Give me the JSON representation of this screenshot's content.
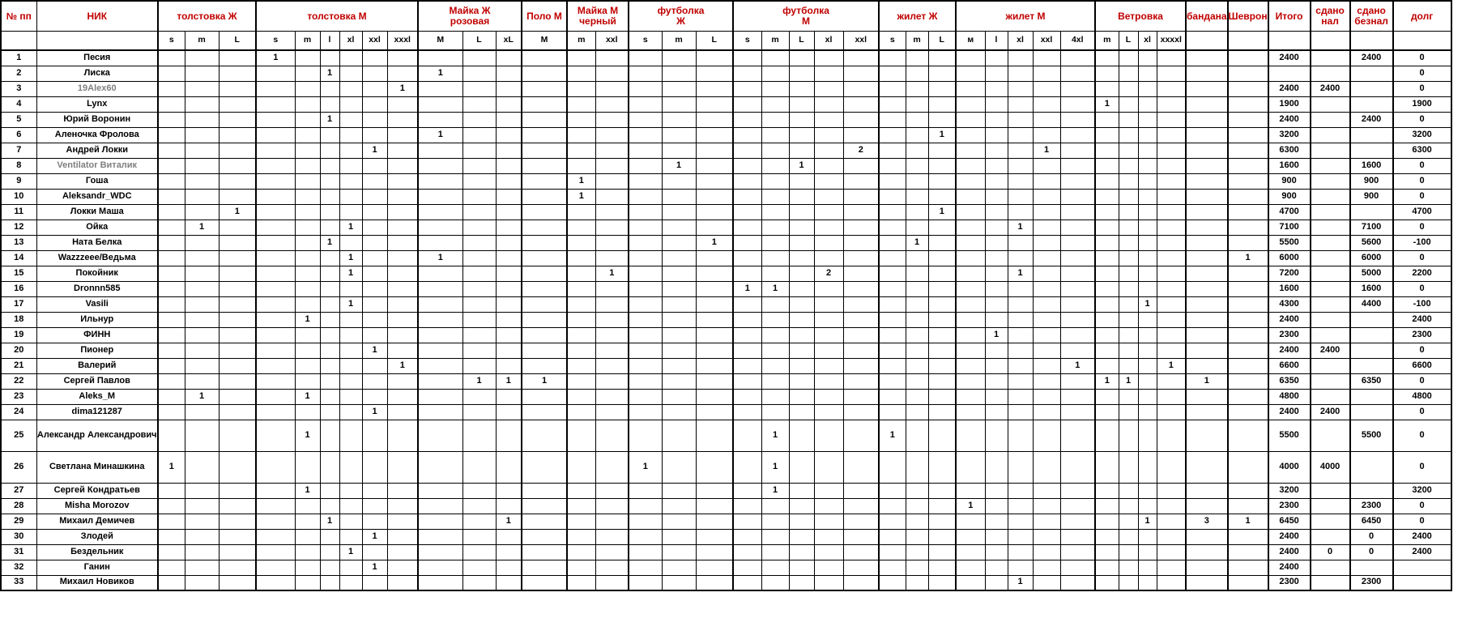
{
  "colors": {
    "header_text": "#C00000",
    "grid_line": "#000000",
    "muted_name": "#7f7f7f"
  },
  "header": {
    "row_label": "№ пп",
    "nick_label": "НИК",
    "groups": [
      {
        "label": "толстовка Ж",
        "sizes": [
          "s",
          "m",
          "L"
        ]
      },
      {
        "label": "толстовка М",
        "sizes": [
          "s",
          "m",
          "l",
          "xl",
          "xxl",
          "xxxl"
        ]
      },
      {
        "label": "Майка Ж\nрозовая",
        "sizes": [
          "M",
          "L",
          "xL"
        ]
      },
      {
        "label": "Поло М",
        "sizes": [
          "M"
        ]
      },
      {
        "label": "Майка М\nчерный",
        "sizes": [
          "m",
          "xxl"
        ]
      },
      {
        "label": "футболка\nЖ",
        "sizes": [
          "s",
          "m",
          "L"
        ]
      },
      {
        "label": "футболка\nМ",
        "sizes": [
          "s",
          "m",
          "L",
          "xl",
          "xxl"
        ]
      },
      {
        "label": "жилет Ж",
        "sizes": [
          "s",
          "m",
          "L"
        ]
      },
      {
        "label": "жилет М",
        "sizes": [
          "м",
          "l",
          "xl",
          "xxl",
          "4xl"
        ]
      },
      {
        "label": "Ветровка",
        "sizes": [
          "m",
          "L",
          "xl",
          "xxxxl"
        ]
      },
      {
        "label": "бандана",
        "sizes": null
      },
      {
        "label": "Шеврон",
        "sizes": null
      },
      {
        "label": "Итого",
        "sizes": null
      },
      {
        "label": "сдано\nнал",
        "sizes": null
      },
      {
        "label": "сдано\nбезнал",
        "sizes": null
      },
      {
        "label": "долг",
        "sizes": null
      }
    ]
  },
  "rows": [
    {
      "n": "1",
      "nick": "Песия",
      "muted": false,
      "tall": false,
      "cells": {
        "3": "1"
      },
      "totals": [
        "2400",
        "",
        "2400",
        "0"
      ]
    },
    {
      "n": "2",
      "nick": "Лиска",
      "muted": false,
      "tall": false,
      "cells": {
        "5": "1",
        "9": "1"
      },
      "totals": [
        "",
        "",
        "",
        "0"
      ]
    },
    {
      "n": "3",
      "nick": "19Alex60",
      "muted": true,
      "tall": false,
      "cells": {
        "8": "1"
      },
      "totals": [
        "2400",
        "2400",
        "",
        "0"
      ]
    },
    {
      "n": "4",
      "nick": "Lynx",
      "muted": false,
      "tall": false,
      "cells": {
        "31": "1"
      },
      "totals": [
        "1900",
        "",
        "",
        "1900"
      ]
    },
    {
      "n": "5",
      "nick": "Юрий Воронин",
      "muted": false,
      "tall": false,
      "cells": {
        "5": "1"
      },
      "totals": [
        "2400",
        "",
        "2400",
        "0"
      ]
    },
    {
      "n": "6",
      "nick": "Аленочка Фролова",
      "muted": false,
      "tall": false,
      "cells": {
        "9": "1",
        "25": "1"
      },
      "totals": [
        "3200",
        "",
        "",
        "3200"
      ]
    },
    {
      "n": "7",
      "nick": "Андрей Локки",
      "muted": false,
      "tall": false,
      "cells": {
        "7": "1",
        "22": "2",
        "29": "1"
      },
      "totals": [
        "6300",
        "",
        "",
        "6300"
      ]
    },
    {
      "n": "8",
      "nick": "Ventilator Виталик",
      "muted": true,
      "tall": false,
      "cells": {
        "16": "1",
        "20": "1"
      },
      "totals": [
        "1600",
        "",
        "1600",
        "0"
      ]
    },
    {
      "n": "9",
      "nick": "Гоша",
      "muted": false,
      "tall": false,
      "cells": {
        "13": "1"
      },
      "totals": [
        "900",
        "",
        "900",
        "0"
      ]
    },
    {
      "n": "10",
      "nick": "Aleksandr_WDC",
      "muted": false,
      "tall": false,
      "cells": {
        "13": "1"
      },
      "totals": [
        "900",
        "",
        "900",
        "0"
      ]
    },
    {
      "n": "11",
      "nick": "Локки Маша",
      "muted": false,
      "tall": false,
      "cells": {
        "2": "1",
        "25": "1"
      },
      "totals": [
        "4700",
        "",
        "",
        "4700"
      ]
    },
    {
      "n": "12",
      "nick": "Ойка",
      "muted": false,
      "tall": false,
      "cells": {
        "1": "1",
        "6": "1",
        "28": "1"
      },
      "totals": [
        "7100",
        "",
        "7100",
        "0"
      ]
    },
    {
      "n": "13",
      "nick": "Ната Белка",
      "muted": false,
      "tall": false,
      "cells": {
        "5": "1",
        "17": "1",
        "24": "1"
      },
      "totals": [
        "5500",
        "",
        "5600",
        "-100"
      ]
    },
    {
      "n": "14",
      "nick": "Wazzzeee/Ведьма",
      "muted": false,
      "tall": false,
      "cells": {
        "6": "1",
        "9": "1",
        "36": "1"
      },
      "totals": [
        "6000",
        "",
        "6000",
        "0"
      ]
    },
    {
      "n": "15",
      "nick": "Покойник",
      "muted": false,
      "tall": false,
      "cells": {
        "6": "1",
        "14": "1",
        "21": "2",
        "28": "1"
      },
      "totals": [
        "7200",
        "",
        "5000",
        "2200"
      ]
    },
    {
      "n": "16",
      "nick": "Dronnn585",
      "muted": false,
      "tall": false,
      "cells": {
        "18": "1",
        "19": "1"
      },
      "totals": [
        "1600",
        "",
        "1600",
        "0"
      ]
    },
    {
      "n": "17",
      "nick": "Vasili",
      "muted": false,
      "tall": false,
      "cells": {
        "6": "1",
        "33": "1"
      },
      "totals": [
        "4300",
        "",
        "4400",
        "-100"
      ]
    },
    {
      "n": "18",
      "nick": "Ильнур",
      "muted": false,
      "tall": false,
      "cells": {
        "4": "1"
      },
      "totals": [
        "2400",
        "",
        "",
        "2400"
      ]
    },
    {
      "n": "19",
      "nick": "ФИНН",
      "muted": false,
      "tall": false,
      "cells": {
        "27": "1"
      },
      "totals": [
        "2300",
        "",
        "",
        "2300"
      ]
    },
    {
      "n": "20",
      "nick": "Пионер",
      "muted": false,
      "tall": false,
      "cells": {
        "7": "1"
      },
      "totals": [
        "2400",
        "2400",
        "",
        "0"
      ]
    },
    {
      "n": "21",
      "nick": "Валерий",
      "muted": false,
      "tall": false,
      "cells": {
        "8": "1",
        "30": "1",
        "34": "1"
      },
      "totals": [
        "6600",
        "",
        "",
        "6600"
      ]
    },
    {
      "n": "22",
      "nick": "Сергей Павлов",
      "muted": false,
      "tall": false,
      "cells": {
        "10": "1",
        "11": "1",
        "12": "1",
        "31": "1",
        "32": "1",
        "35": "1"
      },
      "totals": [
        "6350",
        "",
        "6350",
        "0"
      ]
    },
    {
      "n": "23",
      "nick": "Aleks_M",
      "muted": false,
      "tall": false,
      "cells": {
        "1": "1",
        "4": "1"
      },
      "totals": [
        "4800",
        "",
        "",
        "4800"
      ]
    },
    {
      "n": "24",
      "nick": "dima121287",
      "muted": false,
      "tall": false,
      "cells": {
        "7": "1"
      },
      "totals": [
        "2400",
        "2400",
        "",
        "0"
      ]
    },
    {
      "n": "25",
      "nick": "Александр Александрович",
      "muted": false,
      "tall": true,
      "cells": {
        "4": "1",
        "19": "1",
        "23": "1"
      },
      "totals": [
        "5500",
        "",
        "5500",
        "0"
      ]
    },
    {
      "n": "26",
      "nick": "Светлана Минашкина",
      "muted": false,
      "tall": true,
      "cells": {
        "0": "1",
        "15": "1",
        "19": "1"
      },
      "totals": [
        "4000",
        "4000",
        "",
        "0"
      ]
    },
    {
      "n": "27",
      "nick": "Сергей Кондратьев",
      "muted": false,
      "tall": false,
      "cells": {
        "4": "1",
        "19": "1"
      },
      "totals": [
        "3200",
        "",
        "",
        "3200"
      ]
    },
    {
      "n": "28",
      "nick": "Misha Morozov",
      "muted": false,
      "tall": false,
      "cells": {
        "26": "1"
      },
      "totals": [
        "2300",
        "",
        "2300",
        "0"
      ]
    },
    {
      "n": "29",
      "nick": "Михаил Демичев",
      "muted": false,
      "tall": false,
      "cells": {
        "5": "1",
        "11": "1",
        "33": "1",
        "35": "3",
        "36": "1"
      },
      "totals": [
        "6450",
        "",
        "6450",
        "0"
      ]
    },
    {
      "n": "30",
      "nick": "Злодей",
      "muted": false,
      "tall": false,
      "cells": {
        "7": "1"
      },
      "totals": [
        "2400",
        "",
        "0",
        "2400"
      ]
    },
    {
      "n": "31",
      "nick": "Бездельник",
      "muted": false,
      "tall": false,
      "cells": {
        "6": "1"
      },
      "totals": [
        "2400",
        "0",
        "0",
        "2400"
      ]
    },
    {
      "n": "32",
      "nick": "Ганин",
      "muted": false,
      "tall": false,
      "cells": {
        "7": "1"
      },
      "totals": [
        "2400",
        "",
        "",
        ""
      ]
    },
    {
      "n": "33",
      "nick": "Михаил Новиков",
      "muted": false,
      "tall": false,
      "cells": {
        "28": "1"
      },
      "totals": [
        "2300",
        "",
        "2300",
        ""
      ]
    }
  ]
}
